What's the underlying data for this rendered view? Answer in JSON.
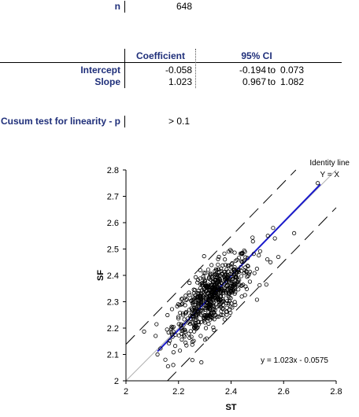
{
  "summary": {
    "n_label": "n",
    "n_value": "648"
  },
  "regression_table": {
    "col_coefficient": "Coefficient",
    "col_ci": "95% CI",
    "rows": [
      {
        "label": "Intercept",
        "coef": "-0.058",
        "ci_low": "-0.194",
        "ci_to": "to",
        "ci_high": "0.073"
      },
      {
        "label": "Slope",
        "coef": "1.023",
        "ci_low": "0.967",
        "ci_to": "to",
        "ci_high": "1.082"
      }
    ]
  },
  "cusum": {
    "label": "Cusum test for linearity - p",
    "value": "> 0.1"
  },
  "chart_data": {
    "type": "scatter",
    "title": "",
    "xlabel": "ST",
    "ylabel": "SF",
    "xlim": [
      2,
      2.8
    ],
    "ylim": [
      2,
      2.8
    ],
    "x_ticks": [
      "2",
      "2.2",
      "2.4",
      "2.6",
      "2.8"
    ],
    "y_ticks": [
      "2",
      "2.1",
      "2.2",
      "2.3",
      "2.4",
      "2.5",
      "2.6",
      "2.7",
      "2.8"
    ],
    "grid": false,
    "identity_label_1": "Identity line",
    "identity_label_2": "Y = X",
    "equation": "y = 1.023x - 0.0575",
    "regression": {
      "slope": 1.023,
      "intercept": -0.0575,
      "x_range": [
        2.12,
        2.74
      ],
      "color": "#1a1acc"
    },
    "ci_band_offset": 0.15,
    "cloud": {
      "n": 648,
      "center_x": 2.33,
      "center_y": 2.32,
      "sd_x": 0.075,
      "sd_y": 0.078,
      "correlation": 0.72
    },
    "outliers": [
      [
        2.73,
        2.75
      ],
      [
        2.64,
        2.56
      ],
      [
        2.56,
        2.58
      ],
      [
        2.54,
        2.55
      ],
      [
        2.55,
        2.45
      ],
      [
        2.58,
        2.47
      ],
      [
        2.15,
        2.08
      ],
      [
        2.18,
        2.06
      ],
      [
        2.12,
        2.1
      ]
    ],
    "colors": {
      "marker": "#000000",
      "axis": "#000000",
      "identity": "#b0b0b0"
    }
  }
}
